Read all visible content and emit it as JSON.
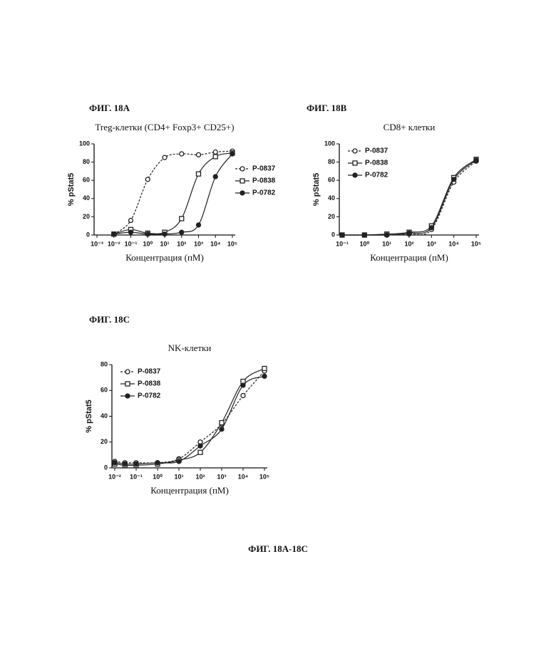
{
  "caption": "ФИГ. 18A-18C",
  "chart_data": [
    {
      "type": "line",
      "figure_label": "ФИГ. 18A",
      "title": "Treg-клетки (CD4+ Foxp3+ CD25+)",
      "x_label": "Концентрация (пМ)",
      "y_label": "% pStat5",
      "log_x": true,
      "legend": "right",
      "x": [
        0.01,
        0.1,
        1,
        10,
        100,
        1000,
        10000,
        100000
      ],
      "xlim": [
        0.001,
        100000
      ],
      "xticks": [
        {
          "value": 0.001,
          "label": "10⁻³"
        },
        {
          "value": 0.01,
          "label": "10⁻²"
        },
        {
          "value": 0.1,
          "label": "10⁻¹"
        },
        {
          "value": 1,
          "label": "10⁰"
        },
        {
          "value": 10,
          "label": "10¹"
        },
        {
          "value": 100,
          "label": "10²"
        },
        {
          "value": 1000,
          "label": "10³"
        },
        {
          "value": 10000,
          "label": "10⁴"
        },
        {
          "value": 100000,
          "label": "10⁵"
        }
      ],
      "ylim": [
        0,
        100
      ],
      "yticks": [
        0,
        20,
        40,
        60,
        80,
        100
      ],
      "series": [
        {
          "name": "P-0837",
          "color": "#222",
          "marker": "circle-open",
          "line": "dashed",
          "values": [
            1,
            16,
            61,
            85,
            89,
            88,
            91,
            92
          ]
        },
        {
          "name": "P-0838",
          "color": "#222",
          "marker": "square-open",
          "line": "solid",
          "values": [
            1,
            6,
            2,
            3,
            18,
            67,
            86,
            90
          ]
        },
        {
          "name": "P-0782",
          "color": "#222",
          "marker": "circle-filled",
          "line": "solid",
          "values": [
            1,
            3,
            1,
            1,
            3,
            11,
            64,
            89
          ]
        }
      ]
    },
    {
      "type": "line",
      "figure_label": "ФИГ. 18B",
      "title": "CD8+ клетки",
      "x_label": "Концентрация (пМ)",
      "y_label": "% pStat5",
      "log_x": true,
      "legend": "upper left",
      "x": [
        0.1,
        1,
        10,
        100,
        1000,
        10000,
        100000
      ],
      "xlim": [
        0.1,
        100000
      ],
      "xticks": [
        {
          "value": 0.1,
          "label": "10⁻¹"
        },
        {
          "value": 1,
          "label": "10⁰"
        },
        {
          "value": 10,
          "label": "10¹"
        },
        {
          "value": 100,
          "label": "10²"
        },
        {
          "value": 1000,
          "label": "10³"
        },
        {
          "value": 10000,
          "label": "10⁴"
        },
        {
          "value": 100000,
          "label": "10⁵"
        }
      ],
      "ylim": [
        0,
        100
      ],
      "yticks": [
        0,
        20,
        40,
        60,
        80,
        100
      ],
      "series": [
        {
          "name": "P-0837",
          "color": "#222",
          "marker": "circle-open",
          "line": "dashed",
          "values": [
            0,
            0,
            0,
            1,
            6,
            58,
            81
          ]
        },
        {
          "name": "P-0838",
          "color": "#222",
          "marker": "square-open",
          "line": "solid",
          "values": [
            0,
            0,
            1,
            3,
            10,
            63,
            83
          ]
        },
        {
          "name": "P-0782",
          "color": "#222",
          "marker": "circle-filled",
          "line": "solid",
          "values": [
            0,
            0,
            0,
            2,
            8,
            61,
            82
          ]
        }
      ]
    },
    {
      "type": "line",
      "figure_label": "ФИГ. 18C",
      "title": "NK-клетки",
      "x_label": "Концентрация (пМ)",
      "y_label": "% pStat5",
      "log_x": true,
      "legend": "upper left",
      "x": [
        0.01,
        0.03,
        0.1,
        1,
        10,
        100,
        1000,
        10000,
        100000
      ],
      "xlim": [
        0.01,
        100000
      ],
      "xticks": [
        {
          "value": 0.01,
          "label": "10⁻²"
        },
        {
          "value": 0.1,
          "label": "10⁻¹"
        },
        {
          "value": 1,
          "label": "10⁰"
        },
        {
          "value": 10,
          "label": "10¹"
        },
        {
          "value": 100,
          "label": "10²"
        },
        {
          "value": 1000,
          "label": "10³"
        },
        {
          "value": 10000,
          "label": "10⁴"
        },
        {
          "value": 100000,
          "label": "10⁵"
        }
      ],
      "ylim": [
        0,
        80
      ],
      "yticks": [
        0,
        20,
        40,
        60,
        80
      ],
      "series": [
        {
          "name": "P-0837",
          "color": "#222",
          "marker": "circle-open",
          "line": "dashed",
          "values": [
            5,
            4,
            4,
            4,
            7,
            20,
            34,
            56,
            75
          ]
        },
        {
          "name": "P-0838",
          "color": "#222",
          "marker": "square-open",
          "line": "solid",
          "values": [
            3,
            2,
            2,
            3,
            6,
            12,
            35,
            67,
            77
          ]
        },
        {
          "name": "P-0782",
          "color": "#222",
          "marker": "circle-filled",
          "line": "solid",
          "values": [
            4,
            3,
            3,
            4,
            5,
            17,
            30,
            64,
            71
          ]
        }
      ]
    }
  ]
}
